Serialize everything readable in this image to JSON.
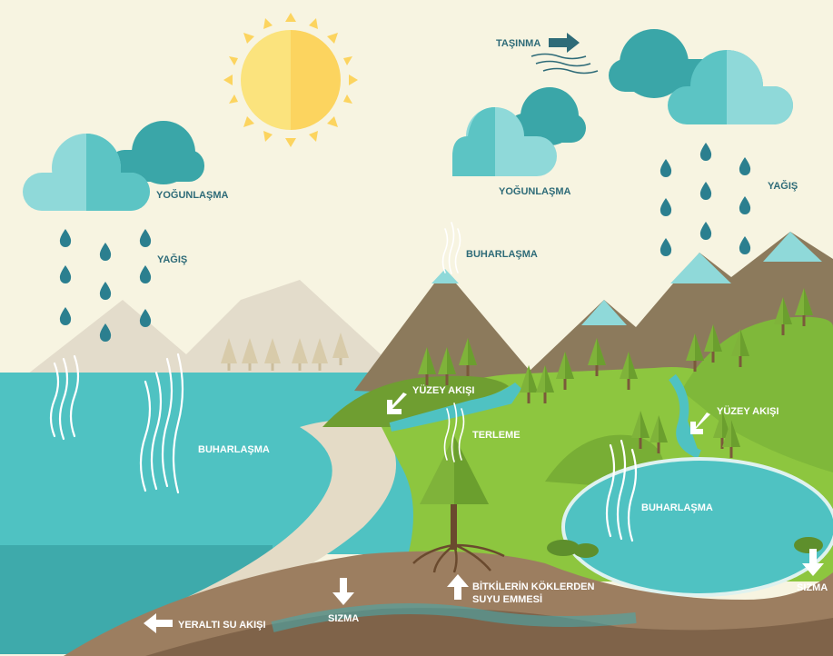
{
  "labels": {
    "transport": "TAŞINMA",
    "condensation_left": "YOĞUNLAŞMA",
    "condensation_middle": "YOĞUNLAŞMA",
    "precipitation_left": "YAĞIŞ",
    "precipitation_right": "YAĞIŞ",
    "evaporation_mountain": "BUHARLAŞMA",
    "evaporation_sea": "BUHARLAŞMA",
    "evaporation_lake": "BUHARLAŞMA",
    "surface_runoff_left": "YÜZEY AKIŞI",
    "surface_runoff_right": "YÜZEY AKIŞI",
    "transpiration": "TERLEME",
    "root_absorption": [
      "BİTKİLERİN KÖKLERDEN",
      "SUYU EMMESİ"
    ],
    "infiltration_left": "SIZMA",
    "infiltration_right": "SIZMA",
    "groundwater_flow": "YERALTI SU AKIŞI"
  }
}
